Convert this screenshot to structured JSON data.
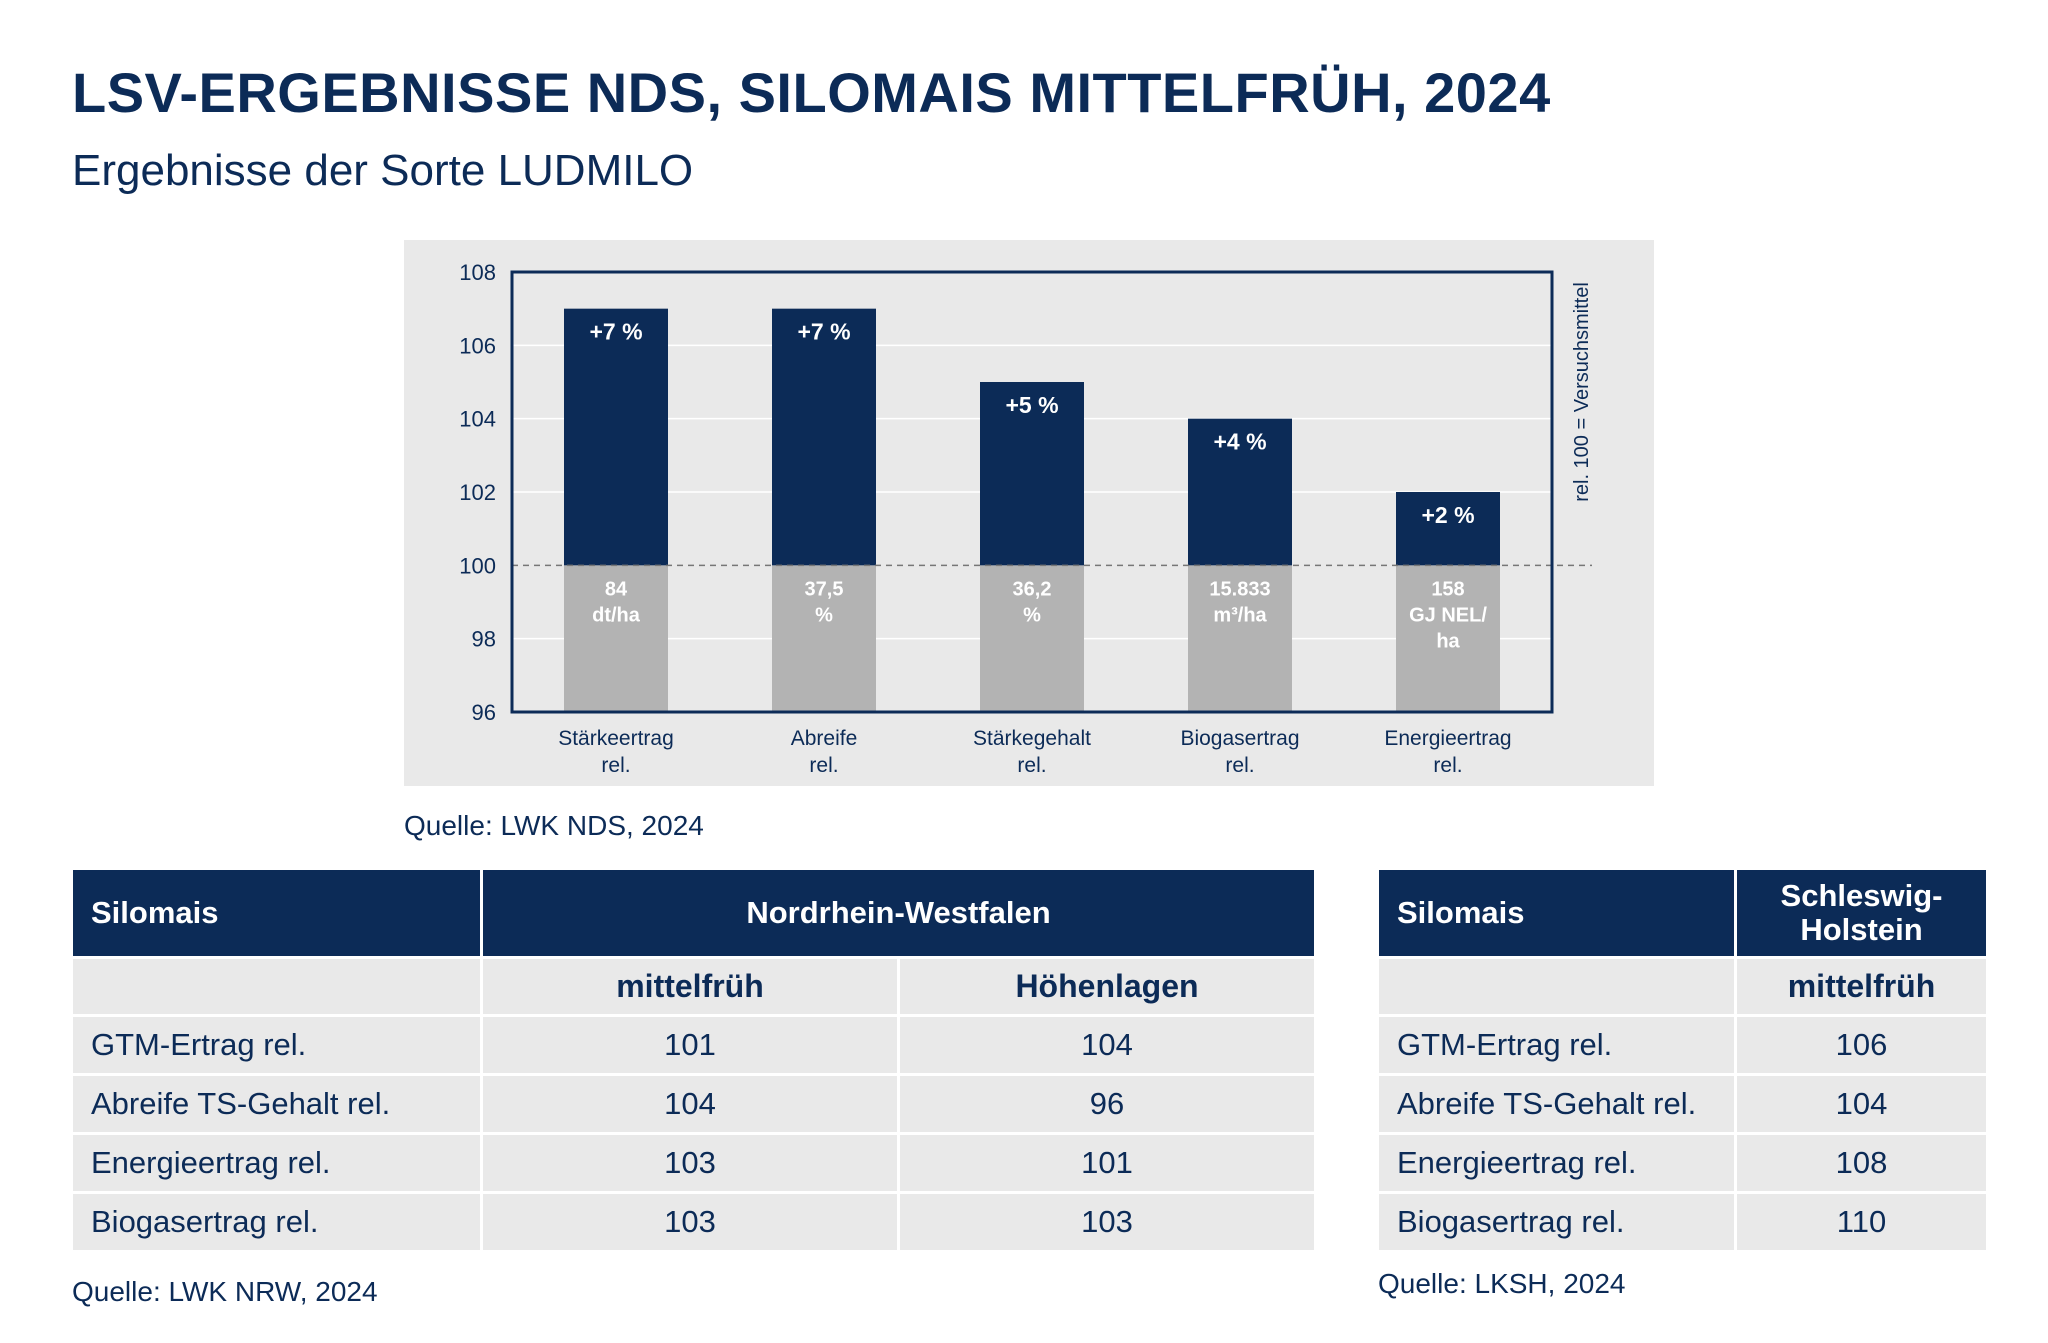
{
  "title": "LSV-ERGEBNISSE NDS, SILOMAIS MITTELFRÜH, 2024",
  "subtitle": "Ergebnisse der Sorte LUDMILO",
  "colors": {
    "navy": "#0c2b57",
    "gray_bar": "#b3b3b3",
    "panel_bg": "#e9e9e9",
    "white": "#ffffff"
  },
  "chart_data": {
    "type": "bar",
    "title": "",
    "xlabel": "",
    "ylabel": "",
    "right_label": "rel. 100 = Versuchsmittel",
    "ylim": [
      96,
      108
    ],
    "yticks": [
      96,
      98,
      100,
      102,
      104,
      106,
      108
    ],
    "baseline": 100,
    "grid": "horizontal",
    "categories": [
      [
        "Stärkeertrag",
        "rel."
      ],
      [
        "Abreife",
        "rel."
      ],
      [
        "Stärkegehalt",
        "rel."
      ],
      [
        "Biogasertrag",
        "rel."
      ],
      [
        "Energieertrag",
        "rel."
      ]
    ],
    "values": [
      107,
      107,
      105,
      104,
      102
    ],
    "bar_labels": [
      "+7 %",
      "+7 %",
      "+5 %",
      "+4 %",
      "+2 %"
    ],
    "absolute_labels": [
      [
        "84",
        "dt/ha"
      ],
      [
        "37,5",
        "%"
      ],
      [
        "36,2",
        "%"
      ],
      [
        "15.833",
        "m³/ha"
      ],
      [
        "158",
        "GJ NEL/",
        "ha"
      ]
    ]
  },
  "chart_source": "Quelle: LWK NDS, 2024",
  "nrw_table": {
    "header_first": "Silomais",
    "header_group": "Nordrhein-Westfalen",
    "subheaders": [
      "mittelfrüh",
      "Höhenlagen"
    ],
    "rows": [
      {
        "label": "GTM-Ertrag rel.",
        "values": [
          "101",
          "104"
        ]
      },
      {
        "label": "Abreife TS-Gehalt rel.",
        "values": [
          "104",
          "96"
        ]
      },
      {
        "label": "Energieertrag rel.",
        "values": [
          "103",
          "101"
        ]
      },
      {
        "label": "Biogasertrag rel.",
        "values": [
          "103",
          "103"
        ]
      }
    ],
    "source": "Quelle: LWK NRW, 2024"
  },
  "sh_table": {
    "header_first": "Silomais",
    "header_group": [
      "Schleswig-",
      "Holstein"
    ],
    "subheader": "mittelfrüh",
    "rows": [
      {
        "label": "GTM-Ertrag rel.",
        "value": "106"
      },
      {
        "label": "Abreife TS-Gehalt rel.",
        "value": "104"
      },
      {
        "label": "Energieertrag rel.",
        "value": "108"
      },
      {
        "label": "Biogasertrag rel.",
        "value": "110"
      }
    ],
    "source": "Quelle: LKSH, 2024"
  }
}
